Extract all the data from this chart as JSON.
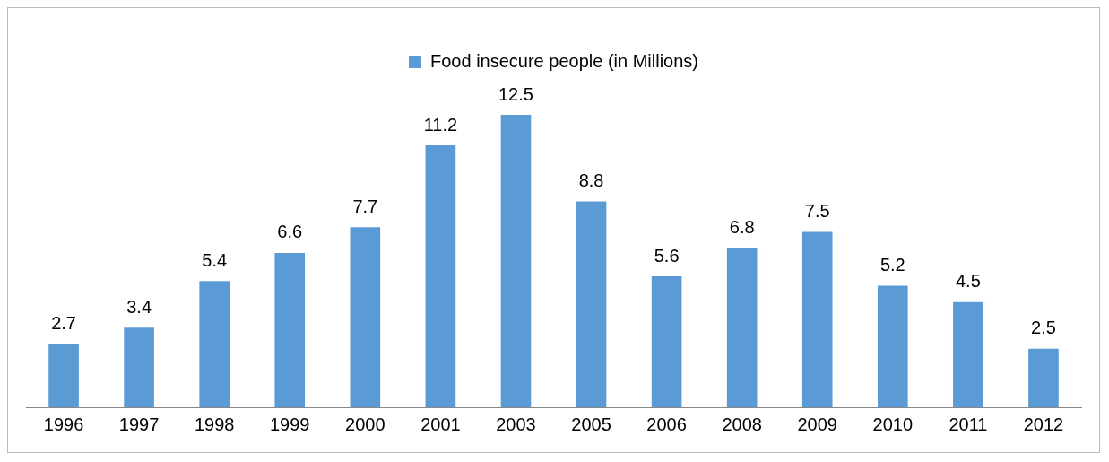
{
  "chart_data": {
    "type": "bar",
    "categories": [
      "1996",
      "1997",
      "1998",
      "1999",
      "2000",
      "2001",
      "2003",
      "2005",
      "2006",
      "2008",
      "2009",
      "2010",
      "2011",
      "2012"
    ],
    "series": [
      {
        "name": "Food insecure people (in Millions)",
        "color": "#5b9bd5",
        "values": [
          2.7,
          3.4,
          5.4,
          6.6,
          7.7,
          11.2,
          12.5,
          8.8,
          5.6,
          6.8,
          7.5,
          5.2,
          4.5,
          2.5
        ]
      }
    ],
    "data_labels": true,
    "legend": "top",
    "grid": false,
    "tick_labels": "x"
  }
}
